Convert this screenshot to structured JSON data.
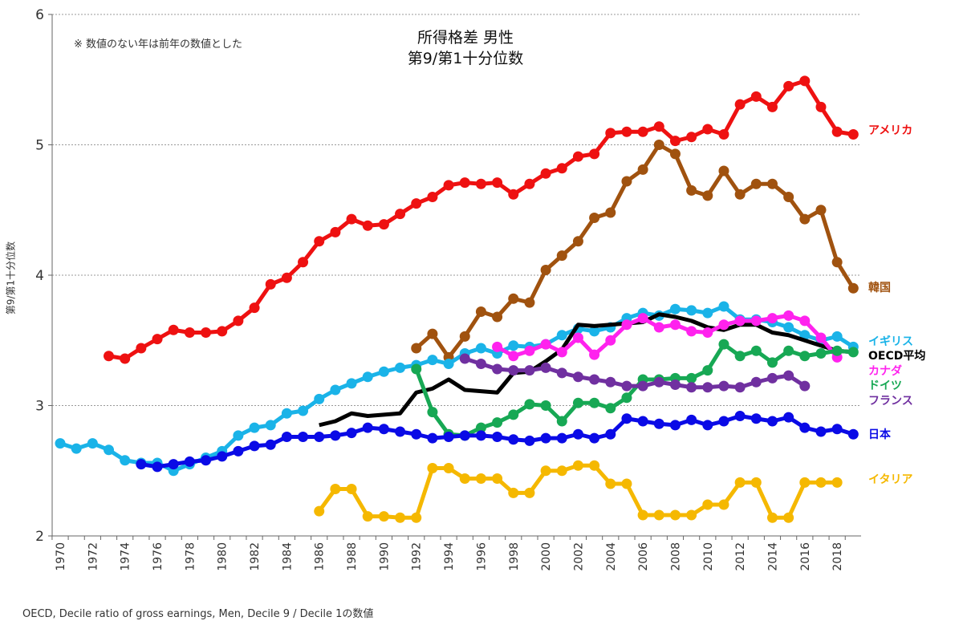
{
  "chart_data": {
    "type": "line",
    "title": "所得格差 男性",
    "subtitle": "第9/第1十分位数",
    "note": "※ 数値のない年は前年の数値とした",
    "xlabel": "",
    "ylabel": "第9/第1十分位数",
    "source": "OECD, Decile ratio of gross earnings, Men, Decile 9 / Decile 1の数値",
    "xlim": [
      1970,
      2019
    ],
    "ylim": [
      2,
      6
    ],
    "yticks": [
      "2",
      "3",
      "4",
      "5",
      "6"
    ],
    "xticks": [
      "1970",
      "1972",
      "1974",
      "1976",
      "1978",
      "1980",
      "1982",
      "1984",
      "1986",
      "1988",
      "1990",
      "1992",
      "1994",
      "1996",
      "1998",
      "2000",
      "2002",
      "2004",
      "2006",
      "2008",
      "2010",
      "2012",
      "2014",
      "2016",
      "2018"
    ],
    "grid": "horizontal dotted",
    "series": [
      {
        "name": "アメリカ",
        "color": "#ee1111",
        "markers": true,
        "start": 1973,
        "values": [
          3.38,
          3.36,
          3.44,
          3.51,
          3.58,
          3.56,
          3.56,
          3.57,
          3.65,
          3.75,
          3.93,
          3.98,
          4.1,
          4.26,
          4.33,
          4.43,
          4.38,
          4.39,
          4.47,
          4.55,
          4.6,
          4.69,
          4.71,
          4.7,
          4.71,
          4.62,
          4.7,
          4.78,
          4.82,
          4.91,
          4.93,
          5.09,
          5.1,
          5.1,
          5.14,
          5.03,
          5.06,
          5.12,
          5.08,
          5.31,
          5.37,
          5.29,
          5.45,
          5.49,
          5.29,
          5.1,
          5.08
        ]
      },
      {
        "name": "韓国",
        "color": "#a0520f",
        "markers": true,
        "start": 1992,
        "values": [
          3.44,
          3.55,
          3.37,
          3.53,
          3.72,
          3.68,
          3.82,
          3.79,
          4.04,
          4.15,
          4.26,
          4.44,
          4.48,
          4.72,
          4.81,
          5.0,
          4.93,
          4.65,
          4.61,
          4.8,
          4.62,
          4.7,
          4.7,
          4.6,
          4.43,
          4.5,
          4.1,
          3.9
        ]
      },
      {
        "name": "イギリス",
        "color": "#1ab3e8",
        "markers": true,
        "start": 1970,
        "values": [
          2.71,
          2.67,
          2.71,
          2.66,
          2.58,
          2.56,
          2.56,
          2.5,
          2.55,
          2.6,
          2.65,
          2.77,
          2.83,
          2.85,
          2.94,
          2.96,
          3.05,
          3.12,
          3.17,
          3.22,
          3.26,
          3.29,
          3.31,
          3.35,
          3.32,
          3.4,
          3.44,
          3.4,
          3.46,
          3.45,
          3.47,
          3.54,
          3.59,
          3.57,
          3.6,
          3.67,
          3.71,
          3.69,
          3.74,
          3.73,
          3.71,
          3.76,
          3.66,
          3.66,
          3.64,
          3.6,
          3.54,
          3.5,
          3.53,
          3.45
        ]
      },
      {
        "name": "OECD平均",
        "color": "#000000",
        "markers": false,
        "start": 1986,
        "values": [
          2.85,
          2.88,
          2.94,
          2.92,
          2.93,
          2.94,
          3.1,
          3.13,
          3.2,
          3.12,
          3.11,
          3.1,
          3.25,
          3.26,
          3.34,
          3.43,
          3.62,
          3.61,
          3.62,
          3.63,
          3.64,
          3.7,
          3.68,
          3.65,
          3.6,
          3.58,
          3.62,
          3.62,
          3.56,
          3.54,
          3.5,
          3.46,
          3.42,
          3.41
        ]
      },
      {
        "name": "カナダ",
        "color": "#ff22ee",
        "markers": true,
        "start": 1997,
        "values": [
          3.45,
          3.38,
          3.42,
          3.47,
          3.41,
          3.52,
          3.39,
          3.5,
          3.62,
          3.67,
          3.6,
          3.62,
          3.57,
          3.56,
          3.62,
          3.65,
          3.65,
          3.67,
          3.69,
          3.65,
          3.52,
          3.37
        ]
      },
      {
        "name": "ドイツ",
        "color": "#17a854",
        "markers": true,
        "start": 1992,
        "values": [
          3.28,
          2.95,
          2.78,
          2.77,
          2.83,
          2.87,
          2.93,
          3.01,
          3.0,
          2.88,
          3.02,
          3.02,
          2.98,
          3.06,
          3.2,
          3.2,
          3.21,
          3.21,
          3.27,
          3.47,
          3.38,
          3.42,
          3.33,
          3.42,
          3.38,
          3.4,
          3.42,
          3.41
        ]
      },
      {
        "name": "フランス",
        "color": "#7030a0",
        "markers": true,
        "start": 1995,
        "values": [
          3.36,
          3.32,
          3.28,
          3.27,
          3.27,
          3.29,
          3.25,
          3.22,
          3.2,
          3.18,
          3.15,
          3.15,
          3.18,
          3.16,
          3.14,
          3.14,
          3.15,
          3.14,
          3.18,
          3.21,
          3.23,
          3.15
        ]
      },
      {
        "name": "日本",
        "color": "#0a0ae6",
        "markers": true,
        "start": 1975,
        "values": [
          2.55,
          2.53,
          2.55,
          2.57,
          2.58,
          2.61,
          2.65,
          2.69,
          2.7,
          2.76,
          2.76,
          2.76,
          2.77,
          2.79,
          2.83,
          2.82,
          2.8,
          2.78,
          2.75,
          2.76,
          2.77,
          2.77,
          2.76,
          2.74,
          2.73,
          2.75,
          2.75,
          2.78,
          2.75,
          2.78,
          2.9,
          2.88,
          2.86,
          2.85,
          2.89,
          2.85,
          2.88,
          2.92,
          2.9,
          2.88,
          2.91,
          2.83,
          2.8,
          2.82,
          2.78
        ]
      },
      {
        "name": "イタリア",
        "color": "#f5b800",
        "markers": true,
        "start": 1986,
        "values": [
          2.19,
          2.36,
          2.36,
          2.15,
          2.15,
          2.14,
          2.14,
          2.52,
          2.52,
          2.44,
          2.44,
          2.44,
          2.33,
          2.33,
          2.5,
          2.5,
          2.54,
          2.54,
          2.4,
          2.4,
          2.16,
          2.16,
          2.16,
          2.16,
          2.24,
          2.24,
          2.41,
          2.41,
          2.14,
          2.14,
          2.41,
          2.41,
          2.41
        ]
      }
    ],
    "legend_placement": "right, inline labels at line ends"
  }
}
